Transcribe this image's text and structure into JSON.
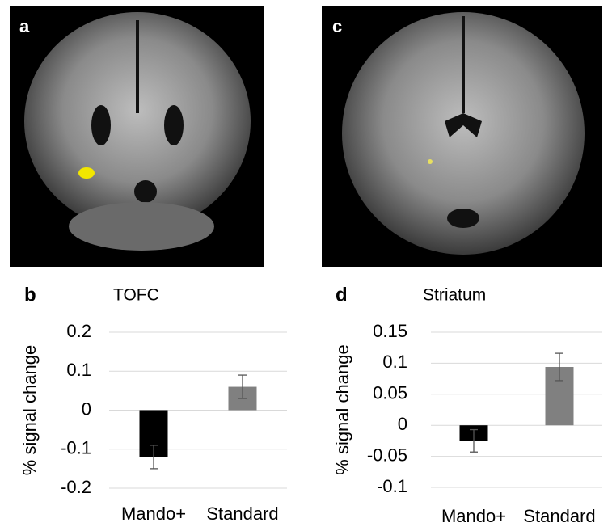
{
  "image_panels": [
    {
      "label": "a"
    },
    {
      "label": "c"
    }
  ],
  "chart_data": [
    {
      "type": "bar",
      "panel_label": "b",
      "title": "TOFC",
      "y_label": "% signal change",
      "categories": [
        "Mando+",
        "Standard"
      ],
      "values": [
        -0.12,
        0.06
      ],
      "errors": [
        0.03,
        0.03
      ],
      "colors": [
        "#000000",
        "#808080"
      ],
      "ylim": [
        -0.2,
        0.2
      ],
      "yticks": [
        0.2,
        0.1,
        0,
        -0.1,
        -0.2
      ],
      "grid": true
    },
    {
      "type": "bar",
      "panel_label": "d",
      "title": "Striatum",
      "y_label": "% signal change",
      "categories": [
        "Mando+",
        "Standard"
      ],
      "values": [
        -0.025,
        0.094
      ],
      "errors": [
        0.018,
        0.022
      ],
      "colors": [
        "#000000",
        "#808080"
      ],
      "ylim": [
        -0.1,
        0.15
      ],
      "yticks": [
        0.15,
        0.1,
        0.05,
        0,
        -0.05,
        -0.1
      ],
      "grid": true
    }
  ]
}
